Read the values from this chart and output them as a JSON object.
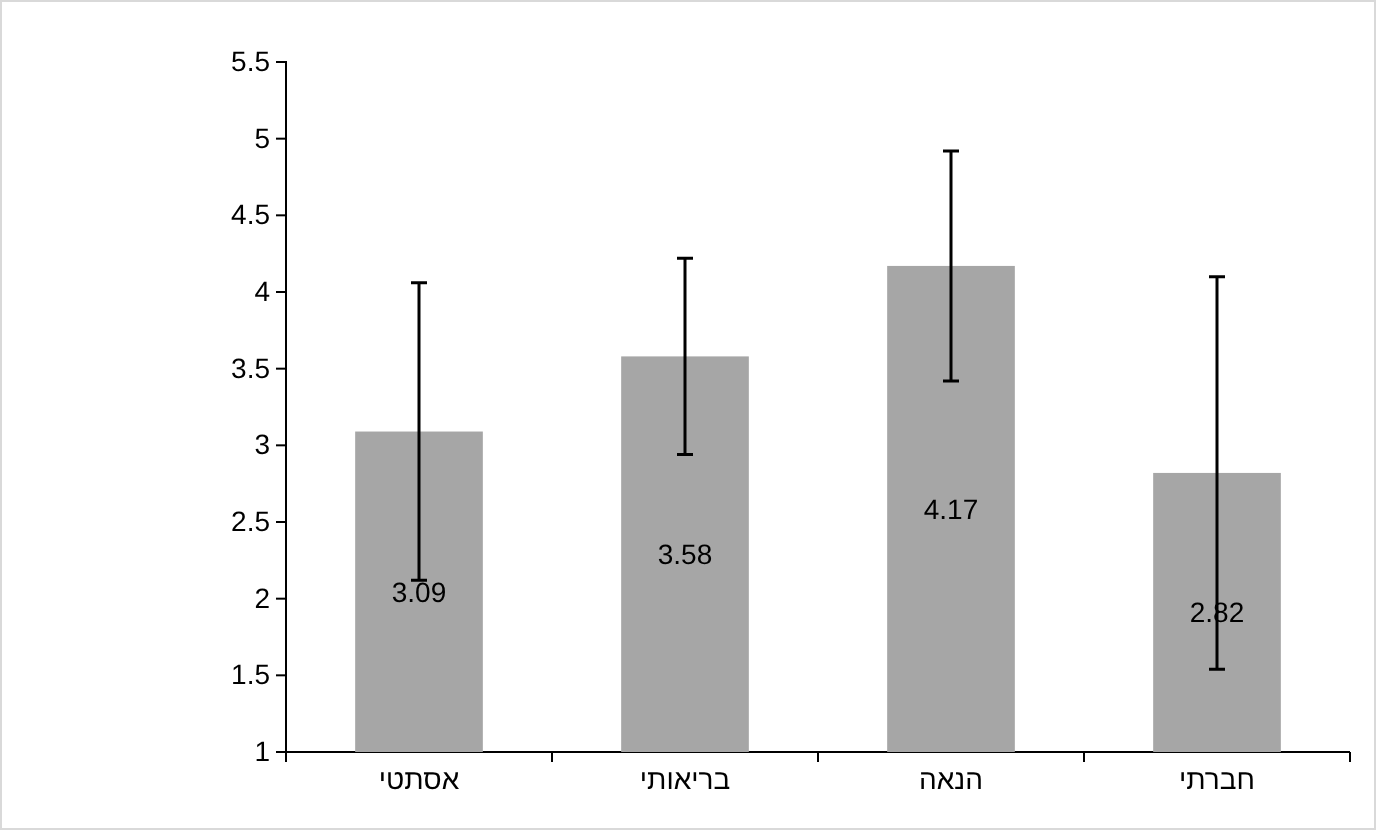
{
  "chart_data": {
    "type": "bar",
    "categories": [
      "אסתטי",
      "בריאותי",
      "הנאה",
      "חברתי"
    ],
    "values": [
      3.09,
      3.58,
      4.17,
      2.82
    ],
    "errors": [
      0.97,
      0.64,
      0.75,
      1.28
    ],
    "color": "#a6a6a6",
    "data_labels": true,
    "ylim": [
      1,
      5.5
    ],
    "yticks": [
      1,
      1.5,
      2,
      2.5,
      3,
      3.5,
      4,
      4.5,
      5,
      5.5
    ],
    "grid": false
  }
}
